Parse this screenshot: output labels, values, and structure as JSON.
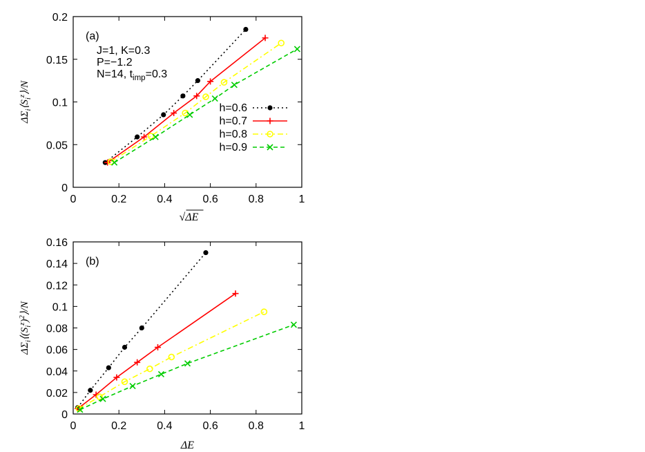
{
  "chart_data": [
    {
      "panel_label": "(a)",
      "type": "line",
      "xlabel": "√ΔE",
      "ylabel": "ΔΣ_i⟨S_i^z⟩/N",
      "xlim": [
        0,
        1
      ],
      "ylim": [
        0,
        0.2
      ],
      "xticks": [
        "0",
        "0.2",
        "0.4",
        "0.6",
        "0.8",
        "1"
      ],
      "yticks": [
        "0",
        "0.05",
        "0.1",
        "0.15",
        "0.2"
      ],
      "annotations": [
        "J=1, K=0.3",
        "P=−1.2",
        "N=14, t_imp=0.3"
      ],
      "legend_position": "right-center",
      "grid": false,
      "series": [
        {
          "name": "h=0.6",
          "color": "#000000",
          "marker": "filled-circle",
          "line": "dotted",
          "x": [
            0.14,
            0.28,
            0.395,
            0.48,
            0.545,
            0.755
          ],
          "y": [
            0.029,
            0.059,
            0.085,
            0.107,
            0.125,
            0.185
          ]
        },
        {
          "name": "h=0.7",
          "color": "#ff0000",
          "marker": "plus",
          "line": "solid",
          "x": [
            0.15,
            0.31,
            0.44,
            0.54,
            0.6,
            0.84
          ],
          "y": [
            0.029,
            0.059,
            0.087,
            0.107,
            0.124,
            0.175
          ]
        },
        {
          "name": "h=0.8",
          "color": "#ffff00",
          "marker": "open-circle",
          "line": "dash-dot",
          "x": [
            0.165,
            0.34,
            0.49,
            0.58,
            0.66,
            0.91
          ],
          "y": [
            0.03,
            0.06,
            0.087,
            0.106,
            0.123,
            0.169
          ]
        },
        {
          "name": "h=0.9",
          "color": "#00cc00",
          "marker": "cross",
          "line": "dashed",
          "x": [
            0.18,
            0.36,
            0.51,
            0.62,
            0.705,
            0.98
          ],
          "y": [
            0.029,
            0.059,
            0.085,
            0.104,
            0.12,
            0.162
          ]
        }
      ]
    },
    {
      "panel_label": "(b)",
      "type": "line",
      "xlabel": "ΔE",
      "ylabel": "ΔΣ_i⟨(S_i^z)^2⟩/N",
      "xlim": [
        0,
        1
      ],
      "ylim": [
        0,
        0.16
      ],
      "xticks": [
        "0",
        "0.2",
        "0.4",
        "0.6",
        "0.8",
        "1"
      ],
      "yticks": [
        "0",
        "0.02",
        "0.04",
        "0.06",
        "0.08",
        "0.1",
        "0.12",
        "0.14",
        "0.16"
      ],
      "grid": false,
      "series": [
        {
          "name": "h=0.6",
          "color": "#000000",
          "marker": "filled-circle",
          "line": "dotted",
          "x": [
            0.02,
            0.075,
            0.155,
            0.225,
            0.3,
            0.58
          ],
          "y": [
            0.006,
            0.022,
            0.043,
            0.062,
            0.08,
            0.15
          ]
        },
        {
          "name": "h=0.7",
          "color": "#ff0000",
          "marker": "plus",
          "line": "solid",
          "x": [
            0.02,
            0.1,
            0.19,
            0.28,
            0.37,
            0.71
          ],
          "y": [
            0.005,
            0.018,
            0.034,
            0.048,
            0.062,
            0.112
          ]
        },
        {
          "name": "h=0.8",
          "color": "#ffff00",
          "marker": "open-circle",
          "line": "dash-dot",
          "x": [
            0.025,
            0.115,
            0.225,
            0.335,
            0.43,
            0.835
          ],
          "y": [
            0.005,
            0.016,
            0.03,
            0.042,
            0.053,
            0.095
          ]
        },
        {
          "name": "h=0.9",
          "color": "#00cc00",
          "marker": "cross",
          "line": "dashed",
          "x": [
            0.03,
            0.13,
            0.26,
            0.385,
            0.5,
            0.965
          ],
          "y": [
            0.004,
            0.014,
            0.026,
            0.037,
            0.047,
            0.083
          ]
        }
      ]
    }
  ]
}
